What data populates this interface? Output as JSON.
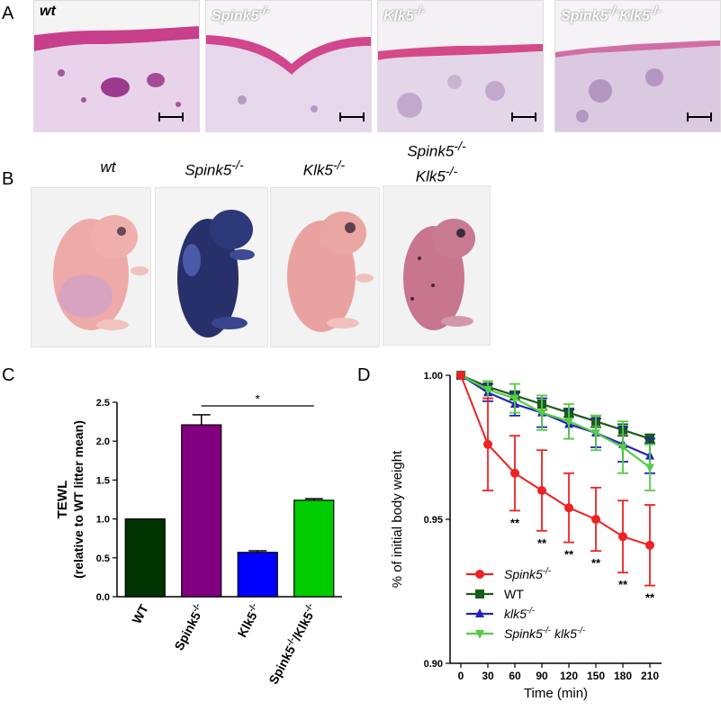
{
  "panels": {
    "A": "A",
    "B": "B",
    "C": "C",
    "D": "D"
  },
  "panel_a": {
    "labels": [
      {
        "base": "wt",
        "sup": ""
      },
      {
        "base": "Spink5",
        "sup": "-/-"
      },
      {
        "base": "Klk5",
        "sup": "-/-"
      },
      {
        "base": "Spink5",
        "sup": "-/-",
        "base2": "Klk5",
        "sup2": "-/-"
      }
    ]
  },
  "panel_b": {
    "labels": [
      {
        "base": "wt",
        "sup": ""
      },
      {
        "base": "Spink5",
        "sup": "-/-"
      },
      {
        "base": "Klk5",
        "sup": "-/-"
      },
      {
        "line1": "Spink5",
        "sup1": "-/-",
        "line2": "Klk5",
        "sup2": "-/-"
      }
    ]
  },
  "chart_data": [
    {
      "type": "bar",
      "ylabel_line1": "TEWL",
      "ylabel_line2": "(relative to WT litter mean)",
      "ylim": [
        0,
        2.5
      ],
      "yticks": [
        "0.0",
        "0.5",
        "1.0",
        "1.5",
        "2.0",
        "2.5"
      ],
      "categories": [
        "WT",
        "Spink5-/-",
        "Klk5-/-",
        "Spink5-/-/Klk5-/-"
      ],
      "category_parts": [
        {
          "base": "WT",
          "sup": ""
        },
        {
          "base": "Spink5",
          "sup": "-/-"
        },
        {
          "base": "Klk5",
          "sup": "-/-"
        },
        {
          "base": "Spink5",
          "sup": "-/-",
          "base2": "/Klk5",
          "sup2": "-/-"
        }
      ],
      "values": [
        1.0,
        2.21,
        0.57,
        1.24
      ],
      "errors": [
        0.0,
        0.13,
        0.02,
        0.02
      ],
      "colors": [
        "#003300",
        "#800080",
        "#0000ff",
        "#00cc00"
      ],
      "annotation": "*",
      "significance_between": [
        1,
        3
      ]
    },
    {
      "type": "line",
      "xlabel": "Time (min)",
      "ylabel": "% of initial body weight",
      "xticks": [
        0,
        30,
        60,
        90,
        120,
        150,
        180,
        210
      ],
      "ylim": [
        0.9,
        1.0
      ],
      "yticks": [
        "0.90",
        "0.95",
        "1.00"
      ],
      "legend_position": "bottom-left",
      "significance_label": "**",
      "significance_x": [
        60,
        90,
        120,
        150,
        180,
        210
      ],
      "series": [
        {
          "name": "Spink5-/-",
          "base": "Spink5",
          "sup": "-/-",
          "base2": "",
          "sup2": "",
          "italic": true,
          "color": "#ee2222",
          "marker": "circle",
          "x": [
            0,
            30,
            60,
            90,
            120,
            150,
            180,
            210
          ],
          "y": [
            1.0,
            0.976,
            0.966,
            0.96,
            0.954,
            0.95,
            0.944,
            0.941
          ],
          "err": [
            0.0,
            0.016,
            0.013,
            0.014,
            0.012,
            0.011,
            0.0125,
            0.014
          ]
        },
        {
          "name": "WT",
          "base": "WT",
          "sup": "",
          "base2": "",
          "sup2": "",
          "italic": false,
          "color": "#1a5c1a",
          "marker": "square",
          "x": [
            0,
            30,
            60,
            90,
            120,
            150,
            180,
            210
          ],
          "y": [
            1.0,
            0.996,
            0.993,
            0.99,
            0.987,
            0.984,
            0.981,
            0.978
          ],
          "err": [
            0.0,
            0.001,
            0.0015,
            0.002,
            0.0015,
            0.002,
            0.002,
            0.0015
          ]
        },
        {
          "name": "klk5-/-",
          "base": "klk5",
          "sup": "-/-",
          "base2": "",
          "sup2": "",
          "italic": true,
          "color": "#2222bb",
          "marker": "triangle-up",
          "x": [
            0,
            30,
            60,
            90,
            120,
            150,
            180,
            210
          ],
          "y": [
            1.0,
            0.994,
            0.99,
            0.987,
            0.983,
            0.98,
            0.976,
            0.972
          ],
          "err": [
            0.0,
            0.003,
            0.004,
            0.005,
            0.005,
            0.005,
            0.006,
            0.006
          ]
        },
        {
          "name": "Spink5-/- klk5-/-",
          "base": "Spink5",
          "sup": "-/-",
          "base2": " klk5",
          "sup2": "-/-",
          "italic": true,
          "color": "#55cc44",
          "marker": "triangle-down",
          "x": [
            0,
            30,
            60,
            90,
            120,
            150,
            180,
            210
          ],
          "y": [
            1.0,
            0.995,
            0.992,
            0.987,
            0.984,
            0.98,
            0.975,
            0.968
          ],
          "err": [
            0.0,
            0.003,
            0.005,
            0.006,
            0.006,
            0.006,
            0.009,
            0.008
          ]
        }
      ]
    }
  ]
}
